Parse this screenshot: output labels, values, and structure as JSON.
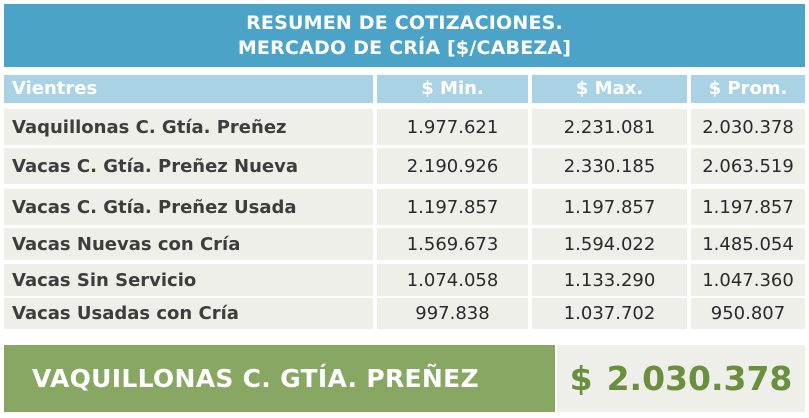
{
  "title": {
    "line1": "RESUMEN DE COTIZACIONES.",
    "line2": "MERCADO DE CRÍA [$/CABEZA]"
  },
  "table": {
    "headers": [
      "Vientres",
      "$ Min.",
      "$ Max.",
      "$ Prom."
    ],
    "rows": [
      {
        "label": "Vaquillonas C. Gtía. Preñez",
        "min": "1.977.621",
        "max": "2.231.081",
        "prom": "2.030.378"
      },
      {
        "label": "Vacas C. Gtía. Preñez Nueva",
        "min": "2.190.926",
        "max": "2.330.185",
        "prom": "2.063.519"
      },
      {
        "label": "Vacas C. Gtía. Preñez Usada",
        "min": "1.197.857",
        "max": "1.197.857",
        "prom": "1.197.857"
      },
      {
        "label": "Vacas Nuevas con Cría",
        "min": "1.569.673",
        "max": "1.594.022",
        "prom": "1.485.054"
      },
      {
        "label": "Vacas Sin Servicio",
        "min": "1.074.058",
        "max": "1.133.290",
        "prom": "1.047.360"
      },
      {
        "label": "Vacas Usadas con Cría",
        "min": "997.838",
        "max": "1.037.702",
        "prom": "950.807"
      }
    ]
  },
  "highlight": {
    "label": "VAQUILLONAS C. GTÍA. PREÑEZ",
    "currency": "$",
    "value": "2.030.378"
  },
  "colors": {
    "title_bg": "#4ba3c8",
    "header_bg": "#a9d2e4",
    "cell_bg": "#efefea",
    "banner_bg": "#87a763",
    "price_text": "#6a8f3e"
  }
}
